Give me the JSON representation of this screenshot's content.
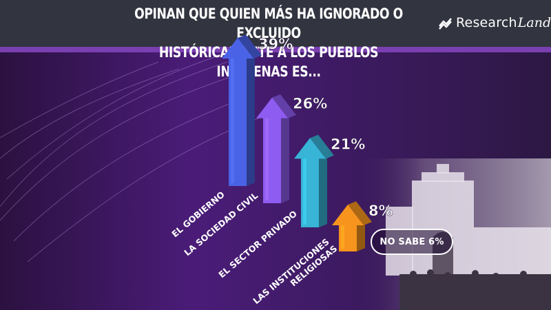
{
  "header": {
    "title_line1": "OPINAN QUE QUIEN MÁS HA IGNORADO O EXCLUIDO",
    "title_line2": "HISTÓRICAMENTE A LOS PUEBLOS INDÍGENAS ES...",
    "brand_main": "Research",
    "brand_script": "Land",
    "brand_icon": "researchland-logo-icon"
  },
  "footnote": {
    "no_sabe": "NO SABE 6%"
  },
  "colors": {
    "header_bg": "#32343f",
    "accent": "#7a3fb0"
  },
  "chart_data": {
    "type": "bar",
    "title": "OPINAN QUE QUIEN MÁS HA IGNORADO O EXCLUIDO HISTÓRICAMENTE A LOS PUEBLOS INDÍGENAS ES...",
    "categories": [
      "EL GOBIERNO",
      "LA SOCIEDAD CIVIL",
      "EL SECTOR PRIVADO",
      "LAS INSTITUCIONES RELIGIOSAS"
    ],
    "values": [
      39,
      26,
      21,
      8
    ],
    "value_labels": [
      "39%",
      "26%",
      "21%",
      "8%"
    ],
    "unit": "%",
    "colors": [
      "#4a63e6",
      "#8e5cf0",
      "#37b4d6",
      "#f7941d"
    ],
    "no_sabe": 6
  }
}
